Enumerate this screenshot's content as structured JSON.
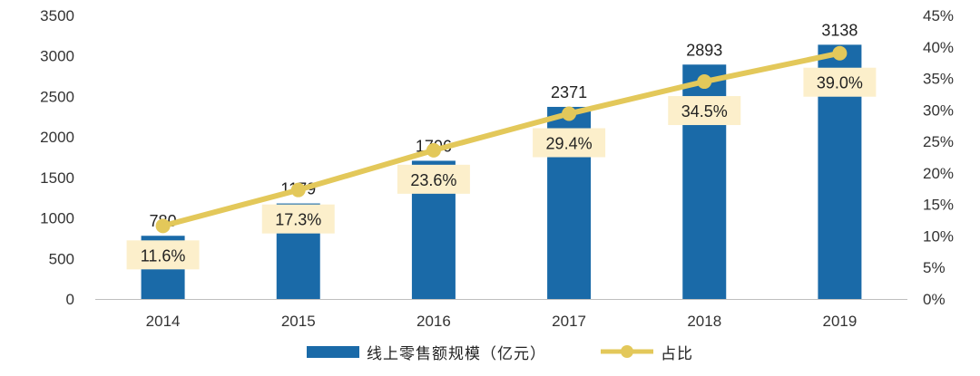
{
  "chart_data": {
    "type": "bar",
    "categories": [
      "2014",
      "2015",
      "2016",
      "2017",
      "2018",
      "2019"
    ],
    "series": [
      {
        "name": "线上零售额规模（亿元）",
        "type": "bar",
        "axis": "left",
        "color": "#1A6AA8",
        "values": [
          780,
          1179,
          1706,
          2371,
          2893,
          3138
        ]
      },
      {
        "name": "占比",
        "type": "line",
        "axis": "right",
        "color": "#E3C85A",
        "values": [
          11.6,
          17.3,
          23.6,
          29.4,
          34.5,
          39.0
        ]
      }
    ],
    "y_left": {
      "min": 0,
      "max": 3500,
      "ticks": [
        "0",
        "500",
        "1000",
        "1500",
        "2000",
        "2500",
        "3000",
        "3500"
      ]
    },
    "y_right": {
      "min": 0,
      "max": 45,
      "ticks": [
        "0%",
        "5%",
        "10%",
        "15%",
        "20%",
        "25%",
        "30%",
        "35%",
        "40%",
        "45%"
      ]
    },
    "bar_labels": [
      "780",
      "1179",
      "1706",
      "2371",
      "2893",
      "3138"
    ],
    "line_labels": [
      "11.6%",
      "17.3%",
      "23.6%",
      "29.4%",
      "34.5%",
      "39.0%"
    ],
    "label_box_color": "#FCEFCB",
    "grid": false,
    "legend_position": "bottom"
  },
  "legend": {
    "bar_label": "线上零售额规模（亿元）",
    "line_label": "占比"
  }
}
